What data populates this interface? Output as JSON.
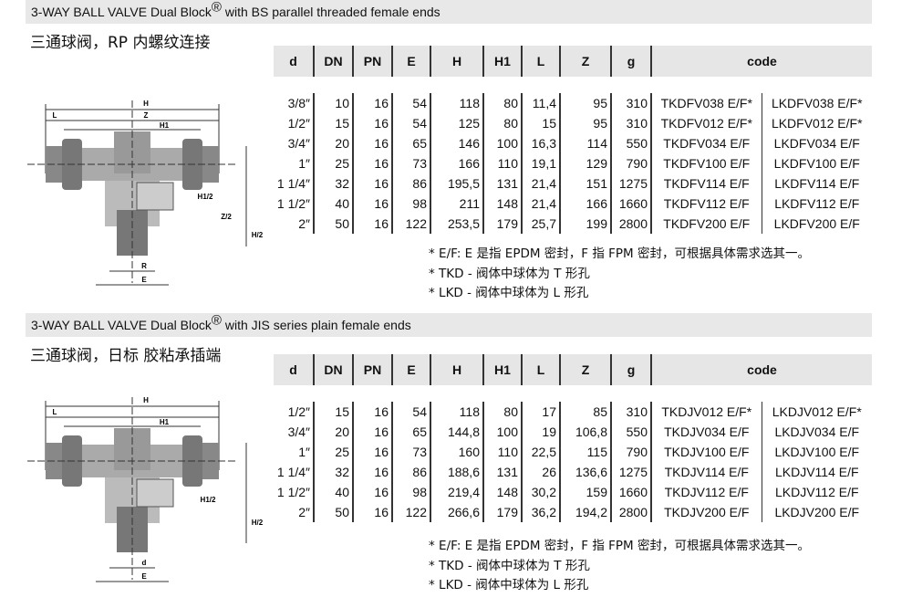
{
  "sections": [
    {
      "title_a": "3-WAY BALL VALVE  Dual Block",
      "title_reg": "®",
      "title_b": " with BS parallel threaded female ends",
      "subtitle": "三通球阀，RP 内螺纹连接",
      "headers": [
        "d",
        "DN",
        "PN",
        "E",
        "H",
        "H1",
        "L",
        "Z",
        "g",
        "code"
      ],
      "rows": [
        [
          "3/8″",
          "10",
          "16",
          "54",
          "118",
          "80",
          "11,4",
          "95",
          "310",
          "TKDFV038 E/F*",
          "LKDFV038 E/F*"
        ],
        [
          "1/2″",
          "15",
          "16",
          "54",
          "125",
          "80",
          "15",
          "95",
          "310",
          "TKDFV012 E/F*",
          "LKDFV012 E/F*"
        ],
        [
          "3/4″",
          "20",
          "16",
          "65",
          "146",
          "100",
          "16,3",
          "114",
          "550",
          "TKDFV034 E/F",
          "LKDFV034 E/F"
        ],
        [
          "1″",
          "25",
          "16",
          "73",
          "166",
          "110",
          "19,1",
          "129",
          "790",
          "TKDFV100 E/F",
          "LKDFV100 E/F"
        ],
        [
          "1 1/4″",
          "32",
          "16",
          "86",
          "195,5",
          "131",
          "21,4",
          "151",
          "1275",
          "TKDFV114 E/F",
          "LKDFV114 E/F"
        ],
        [
          "1 1/2″",
          "40",
          "16",
          "98",
          "211",
          "148",
          "21,4",
          "166",
          "1660",
          "TKDFV112 E/F",
          "LKDFV112 E/F"
        ],
        [
          "2″",
          "50",
          "16",
          "122",
          "253,5",
          "179",
          "25,7",
          "199",
          "2800",
          "TKDFV200 E/F",
          "LKDFV200 E/F"
        ]
      ],
      "notes": [
        "* E/F: E 是指 EPDM 密封，F 指 FPM 密封，可根据具体需求选其一。",
        "* TKD - 阀体中球体为 T 形孔",
        "* LKD - 阀体中球体为 L 形孔"
      ],
      "diagram_labels": [
        "H",
        "L",
        "Z",
        "H1",
        "H1/2",
        "Z/2",
        "H/2",
        "R",
        "E"
      ]
    },
    {
      "title_a": "3-WAY BALL VALVE  Dual Block",
      "title_reg": "®",
      "title_b": " with JIS series plain female ends",
      "subtitle": "三通球阀，日标 胶粘承插端",
      "headers": [
        "d",
        "DN",
        "PN",
        "E",
        "H",
        "H1",
        "L",
        "Z",
        "g",
        "code"
      ],
      "rows": [
        [
          "1/2″",
          "15",
          "16",
          "54",
          "118",
          "80",
          "17",
          "85",
          "310",
          "TKDJV012 E/F*",
          "LKDJV012 E/F*"
        ],
        [
          "3/4″",
          "20",
          "16",
          "65",
          "144,8",
          "100",
          "19",
          "106,8",
          "550",
          "TKDJV034 E/F",
          "LKDJV034 E/F"
        ],
        [
          "1″",
          "25",
          "16",
          "73",
          "160",
          "110",
          "22,5",
          "115",
          "790",
          "TKDJV100 E/F",
          "LKDJV100 E/F"
        ],
        [
          "1 1/4″",
          "32",
          "16",
          "86",
          "188,6",
          "131",
          "26",
          "136,6",
          "1275",
          "TKDJV114 E/F",
          "LKDJV114 E/F"
        ],
        [
          "1 1/2″",
          "40",
          "16",
          "98",
          "219,4",
          "148",
          "30,2",
          "159",
          "1660",
          "TKDJV112 E/F",
          "LKDJV112 E/F"
        ],
        [
          "2″",
          "50",
          "16",
          "122",
          "266,6",
          "179",
          "36,2",
          "194,2",
          "2800",
          "TKDJV200 E/F",
          "LKDJV200 E/F"
        ]
      ],
      "notes": [
        "* E/F: E 是指 EPDM 密封，F 指 FPM 密封，可根据具体需求选其一。",
        "* TKD - 阀体中球体为 T 形孔",
        "* LKD - 阀体中球体为 L 形孔"
      ],
      "diagram_labels": [
        "H",
        "L",
        "H1",
        "H1/2",
        "H/2",
        "d",
        "E"
      ]
    }
  ]
}
